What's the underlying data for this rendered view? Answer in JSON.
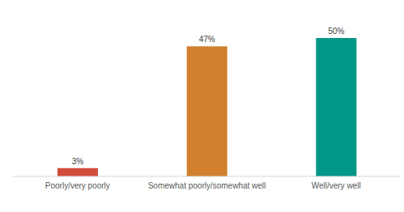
{
  "chart_data": {
    "type": "bar",
    "categories": [
      "Poorly/very poorly",
      "Somewhat poorly/somewhat well",
      "Well/very well"
    ],
    "values": [
      3,
      47,
      50
    ],
    "value_labels": [
      "3%",
      "47%",
      "50%"
    ],
    "colors": [
      "#d24e3c",
      "#d0802f",
      "#009688"
    ],
    "ylim": [
      0,
      50
    ],
    "data_labels": true,
    "tick_labels": "x",
    "grid": false
  }
}
